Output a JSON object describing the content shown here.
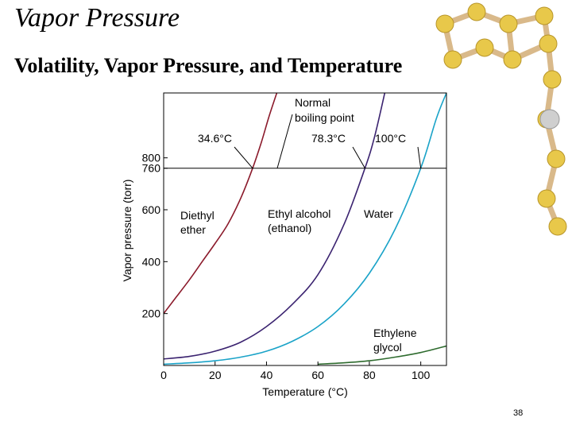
{
  "slide": {
    "title": "Vapor Pressure",
    "subtitle": "Volatility, Vapor Pressure, and Temperature",
    "page_number": "38"
  },
  "decoration": {
    "molecule_icon": "molecule-ball-and-stick-icon",
    "ball_color": "#E8C84A",
    "stick_color": "#D9B98A"
  },
  "chart_data": {
    "type": "line",
    "xlabel": "Temperature (°C)",
    "ylabel": "Vapor pressure (torr)",
    "xlim": [
      0,
      110
    ],
    "ylim": [
      0,
      1050
    ],
    "x_ticks": [
      0,
      20,
      40,
      60,
      80,
      100
    ],
    "y_ticks": [
      200,
      400,
      600,
      760,
      800
    ],
    "grid": false,
    "reference_line": {
      "y": 760,
      "label": "Normal boiling point"
    },
    "series": [
      {
        "name": "Diethyl ether",
        "label_lines": [
          "Diethyl",
          "ether"
        ],
        "color": "#8B1A2B",
        "boiling_point_label": "34.6°C",
        "points": [
          [
            0,
            200
          ],
          [
            5,
            265
          ],
          [
            10,
            330
          ],
          [
            15,
            400
          ],
          [
            20,
            470
          ],
          [
            25,
            545
          ],
          [
            30,
            645
          ],
          [
            34.6,
            760
          ],
          [
            38,
            860
          ],
          [
            41,
            960
          ],
          [
            44,
            1050
          ]
        ]
      },
      {
        "name": "Ethyl alcohol (ethanol)",
        "label_lines": [
          "Ethyl alcohol",
          "(ethanol)"
        ],
        "color": "#3B2370",
        "boiling_point_label": "78.3°C",
        "points": [
          [
            0,
            25
          ],
          [
            10,
            35
          ],
          [
            20,
            55
          ],
          [
            30,
            90
          ],
          [
            40,
            150
          ],
          [
            50,
            235
          ],
          [
            60,
            350
          ],
          [
            70,
            540
          ],
          [
            78.3,
            760
          ],
          [
            82,
            880
          ],
          [
            86,
            1050
          ]
        ]
      },
      {
        "name": "Water",
        "label_lines": [
          "Water"
        ],
        "color": "#1AA3C8",
        "boiling_point_label": "100°C",
        "points": [
          [
            0,
            5
          ],
          [
            10,
            10
          ],
          [
            20,
            18
          ],
          [
            30,
            32
          ],
          [
            40,
            55
          ],
          [
            50,
            93
          ],
          [
            60,
            150
          ],
          [
            70,
            235
          ],
          [
            80,
            355
          ],
          [
            90,
            525
          ],
          [
            100,
            760
          ],
          [
            106,
            950
          ],
          [
            110,
            1050
          ]
        ]
      },
      {
        "name": "Ethylene glycol",
        "label_lines": [
          "Ethylene",
          "glycol"
        ],
        "color": "#2E6B2E",
        "boiling_point_label": "",
        "points": [
          [
            60,
            5
          ],
          [
            70,
            10
          ],
          [
            80,
            18
          ],
          [
            90,
            32
          ],
          [
            100,
            50
          ],
          [
            110,
            75
          ]
        ]
      }
    ]
  }
}
